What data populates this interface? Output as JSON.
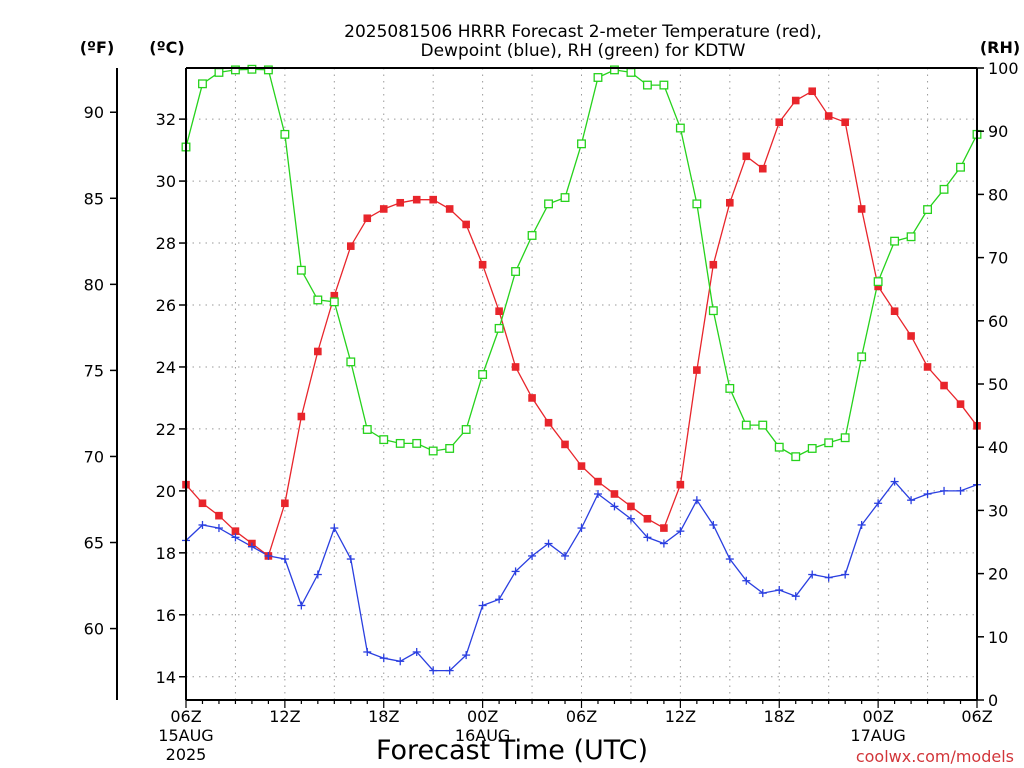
{
  "chart_data": {
    "type": "line",
    "title_line1": "2025081506 HRRR Forecast 2-meter Temperature (red),",
    "title_line2": "Dewpoint (blue), RH (green) for KDTW",
    "xlabel": "Forecast Time (UTC)",
    "watermark": "coolwx.com/models",
    "x_tick_labels": [
      {
        "hour": 0,
        "label": "06Z"
      },
      {
        "hour": 6,
        "label": "12Z"
      },
      {
        "hour": 12,
        "label": "18Z"
      },
      {
        "hour": 18,
        "label": "00Z"
      },
      {
        "hour": 24,
        "label": "06Z"
      },
      {
        "hour": 30,
        "label": "12Z"
      },
      {
        "hour": 36,
        "label": "18Z"
      },
      {
        "hour": 42,
        "label": "00Z"
      },
      {
        "hour": 48,
        "label": "06Z"
      }
    ],
    "date_labels": [
      {
        "hour": 0,
        "line1": "15AUG",
        "line2": "2025"
      },
      {
        "hour": 18,
        "line1": "16AUG",
        "line2": ""
      },
      {
        "hour": 42,
        "line1": "17AUG",
        "line2": ""
      }
    ],
    "x_range_hours": [
      0,
      48
    ],
    "axis_c": {
      "unit_label": "(ºC)",
      "range": [
        13.25,
        33.65
      ],
      "ticks": [
        14,
        16,
        18,
        20,
        22,
        24,
        26,
        28,
        30,
        32
      ]
    },
    "axis_f": {
      "unit_label": "(ºF)",
      "ticks": [
        60,
        65,
        70,
        75,
        80,
        85,
        90
      ]
    },
    "axis_rh": {
      "unit_label": "(RH)",
      "range": [
        0,
        100
      ],
      "ticks": [
        0,
        10,
        20,
        30,
        40,
        50,
        60,
        70,
        80,
        90,
        100
      ]
    },
    "grid": true,
    "series": [
      {
        "key": "temperature",
        "color": "#e8252b",
        "axis": "C",
        "marker": "filled-square",
        "values": [
          20.2,
          19.6,
          19.2,
          18.7,
          18.3,
          17.9,
          19.6,
          22.4,
          24.5,
          26.3,
          27.9,
          28.8,
          29.1,
          29.3,
          29.4,
          29.4,
          29.1,
          28.6,
          27.3,
          25.8,
          24.0,
          23.0,
          22.2,
          21.5,
          20.8,
          20.3,
          19.9,
          19.5,
          19.1,
          18.8,
          20.2,
          23.9,
          27.3,
          29.3,
          30.8,
          30.4,
          31.9,
          32.6,
          32.9,
          32.1,
          31.9,
          29.1,
          26.6,
          25.8,
          25.0,
          24.0,
          23.4,
          22.8,
          22.1
        ]
      },
      {
        "key": "dewpoint",
        "color": "#2a3fe0",
        "axis": "C",
        "marker": "plus",
        "values": [
          18.4,
          18.9,
          18.8,
          18.5,
          18.2,
          17.9,
          17.8,
          16.3,
          17.3,
          18.8,
          17.8,
          14.8,
          14.6,
          14.5,
          14.8,
          14.2,
          14.2,
          14.7,
          16.3,
          16.5,
          17.4,
          17.9,
          18.3,
          17.9,
          18.8,
          19.9,
          19.5,
          19.1,
          18.5,
          18.3,
          18.7,
          19.7,
          18.9,
          17.8,
          17.1,
          16.7,
          16.8,
          16.6,
          17.3,
          17.2,
          17.3,
          18.9,
          19.6,
          20.3,
          19.7,
          19.9,
          20.0,
          20.0,
          20.2
        ]
      },
      {
        "key": "rh",
        "color": "#26d21c",
        "axis": "RH",
        "marker": "open-square",
        "values": [
          87.5,
          97.5,
          99.3,
          99.7,
          99.8,
          99.7,
          89.5,
          68.0,
          63.3,
          63.0,
          53.5,
          42.8,
          41.2,
          40.6,
          40.6,
          39.4,
          39.8,
          42.8,
          51.5,
          58.8,
          67.8,
          73.5,
          78.5,
          79.5,
          88.0,
          98.5,
          99.7,
          99.3,
          97.3,
          97.3,
          90.5,
          78.5,
          61.6,
          49.3,
          43.5,
          43.5,
          40.0,
          38.5,
          39.8,
          40.7,
          41.5,
          54.3,
          66.2,
          72.6,
          73.3,
          77.6,
          80.8,
          84.3,
          89.5
        ]
      }
    ]
  }
}
